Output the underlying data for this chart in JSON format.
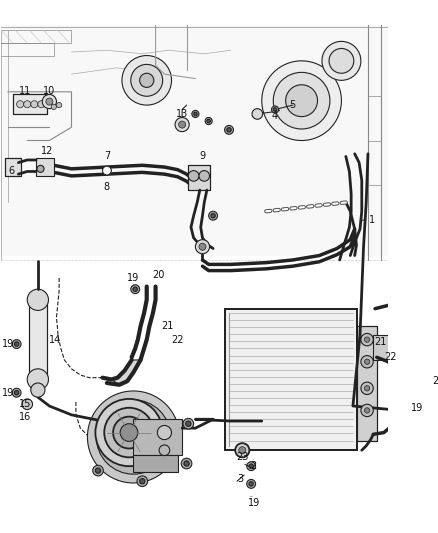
{
  "background_color": "#ffffff",
  "line_color": "#222222",
  "label_color": "#111111",
  "figsize": [
    4.38,
    5.33
  ],
  "dpi": 100,
  "lw_main": 2.0,
  "lw_med": 1.3,
  "lw_thin": 0.8,
  "lw_xtra": 0.5,
  "label_fs": 7.0,
  "upper_bg": "#f5f5f5",
  "comp_color": "#d0d0d0",
  "cond_fin": "#cccccc",
  "cond_bg": "#e8e8e8",
  "acc_color": "#e0e0e0"
}
